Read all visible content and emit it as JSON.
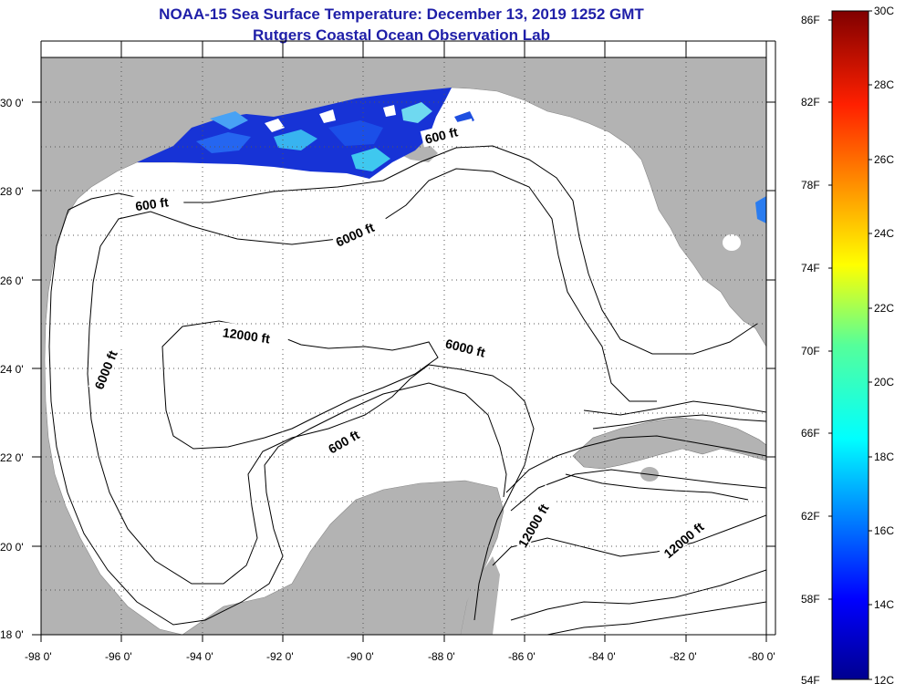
{
  "title_line1": "NOAA-15 Sea Surface Temperature:  December 13, 2019 1252 GMT",
  "title_line2": "Rutgers Coastal Ocean Observation Lab",
  "map": {
    "lon_range": [
      -98,
      -80
    ],
    "lat_range": [
      18,
      31
    ],
    "lon_ticks": [
      "-98 0'",
      "-96 0'",
      "-94 0'",
      "-92 0'",
      "-90 0'",
      "-88 0'",
      "-86 0'",
      "-84 0'",
      "-82 0'",
      "-80 0'"
    ],
    "lat_ticks": [
      "30 0'",
      "28 0'",
      "26 0'",
      "24 0'",
      "22 0'",
      "20 0'",
      "18 0'"
    ],
    "contour_labels": [
      "600 ft",
      "600 ft",
      "6000 ft",
      "12000 ft",
      "6000 ft",
      "6000 ft",
      "600 ft",
      "12000 ft",
      "12000 ft"
    ],
    "colors": {
      "land": "#b3b3b3",
      "ocean": "#ffffff",
      "grid": "#555555"
    }
  },
  "colorbar": {
    "f_labels": [
      "86F",
      "82F",
      "78F",
      "74F",
      "70F",
      "66F",
      "62F",
      "58F",
      "54F"
    ],
    "c_labels": [
      "30C",
      "28C",
      "26C",
      "24C",
      "22C",
      "20C",
      "18C",
      "16C",
      "14C",
      "12C"
    ],
    "range_c": [
      12,
      30
    ]
  }
}
